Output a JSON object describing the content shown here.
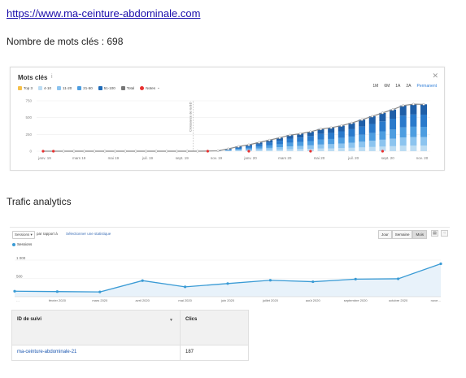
{
  "url": "https://www.ma-ceinture-abdominale.com",
  "keyword_count_label": "Nombre de mots clés : 698",
  "kw_panel": {
    "title": "Mots clés",
    "info_icon": "info-icon",
    "close_icon": "close-icon",
    "legend": [
      {
        "label": "Top 3",
        "color": "#f5c04a"
      },
      {
        "label": "4-10",
        "color": "#bcdcf3"
      },
      {
        "label": "11-20",
        "color": "#8cc4ef"
      },
      {
        "label": "21-50",
        "color": "#4d9de0"
      },
      {
        "label": "51-100",
        "color": "#1f6bb8"
      },
      {
        "label": "Total",
        "color": "#777777"
      }
    ],
    "notes_label": "Notes",
    "ranges": [
      "1M",
      "6M",
      "1A",
      "2A",
      "Permanent"
    ],
    "active_range": "Permanent"
  },
  "trafic_title": "Trafic analytics",
  "analytics": {
    "metric_select": "Sessions",
    "vs_label": "par rapport à",
    "second_metric": "Sélectionner une statistique",
    "period_buttons": [
      "Jour",
      "Semaine",
      "Mois"
    ],
    "active_period": "Mois",
    "legend_label": "Sessions"
  },
  "table": {
    "col1_header": "ID de suivi",
    "col2_header": "Clics",
    "rows": [
      {
        "id": "ma-ceinture-abdominale-21",
        "clics": "187"
      }
    ]
  },
  "chart_data": [
    {
      "type": "bar",
      "title": "Mots clés",
      "y_ticks": [
        "750",
        "500",
        "250",
        "0"
      ],
      "ylim": [
        0,
        750
      ],
      "x_tick_labels": [
        "janv. 19",
        "mars 19",
        "mai 19",
        "juil. 19",
        "sept. 19",
        "nov. 19",
        "janv. 20",
        "mars 20",
        "mai 20",
        "juil. 20",
        "sept. 20",
        "nov. 20"
      ],
      "annotation": "Croissance de la BD",
      "series": [
        {
          "name": "Total",
          "values": [
            0,
            0,
            0,
            0,
            0,
            0,
            0,
            0,
            0,
            0,
            0,
            0,
            0,
            0,
            0,
            0,
            2,
            5,
            35,
            70,
            95,
            130,
            165,
            200,
            240,
            260,
            290,
            330,
            350,
            380,
            420,
            470,
            520,
            570,
            620,
            680,
            700,
            698
          ]
        }
      ],
      "notes_markers": [
        0,
        1,
        16,
        20,
        26,
        33
      ]
    },
    {
      "type": "area",
      "title": "",
      "series_name": "Sessions",
      "y_ticks": [
        "1 000",
        "500"
      ],
      "ylim": [
        0,
        1200
      ],
      "x_tick_labels": [
        "…",
        "février 2020",
        "mars 2020",
        "avril 2020",
        "mai 2020",
        "juin 2020",
        "juillet 2020",
        "août 2020",
        "septembre 2020",
        "octobre 2020",
        "nove…"
      ],
      "values": [
        150,
        140,
        130,
        440,
        270,
        360,
        450,
        410,
        480,
        490,
        900
      ]
    }
  ]
}
